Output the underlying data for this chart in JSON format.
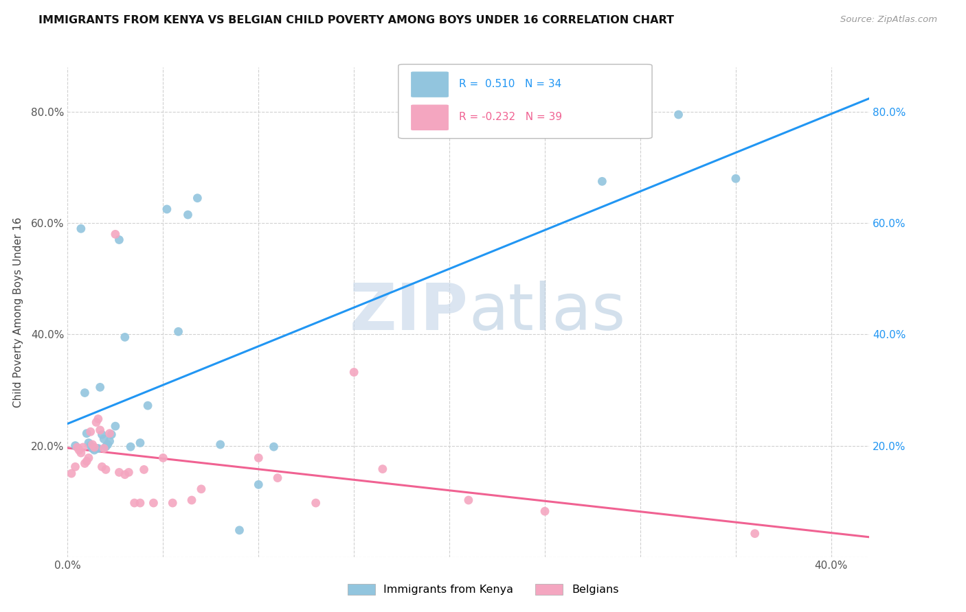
{
  "title": "IMMIGRANTS FROM KENYA VS BELGIAN CHILD POVERTY AMONG BOYS UNDER 16 CORRELATION CHART",
  "source": "Source: ZipAtlas.com",
  "ylabel": "Child Poverty Among Boys Under 16",
  "y_ticks": [
    0.0,
    0.2,
    0.4,
    0.6,
    0.8
  ],
  "y_tick_labels": [
    "",
    "20.0%",
    "40.0%",
    "60.0%",
    "80.0%"
  ],
  "xlim": [
    0.0,
    0.42
  ],
  "ylim": [
    0.0,
    0.88
  ],
  "color_kenya": "#92c5de",
  "color_belgian": "#f4a6c0",
  "trendline_color_kenya": "#2196F3",
  "trendline_color_belgian": "#f06292",
  "kenya_x": [
    0.004,
    0.007,
    0.009,
    0.01,
    0.011,
    0.012,
    0.013,
    0.014,
    0.015,
    0.016,
    0.017,
    0.018,
    0.019,
    0.02,
    0.021,
    0.022,
    0.023,
    0.025,
    0.027,
    0.03,
    0.033,
    0.038,
    0.042,
    0.052,
    0.058,
    0.063,
    0.068,
    0.08,
    0.09,
    0.1,
    0.108,
    0.28,
    0.32,
    0.35
  ],
  "kenya_y": [
    0.2,
    0.59,
    0.295,
    0.222,
    0.205,
    0.2,
    0.195,
    0.192,
    0.195,
    0.195,
    0.305,
    0.22,
    0.212,
    0.198,
    0.202,
    0.208,
    0.22,
    0.235,
    0.57,
    0.395,
    0.198,
    0.205,
    0.272,
    0.625,
    0.405,
    0.615,
    0.645,
    0.202,
    0.048,
    0.13,
    0.198,
    0.675,
    0.795,
    0.68
  ],
  "belgian_x": [
    0.002,
    0.004,
    0.005,
    0.006,
    0.007,
    0.008,
    0.009,
    0.01,
    0.011,
    0.012,
    0.013,
    0.014,
    0.015,
    0.016,
    0.017,
    0.018,
    0.019,
    0.02,
    0.022,
    0.025,
    0.027,
    0.03,
    0.032,
    0.035,
    0.038,
    0.04,
    0.045,
    0.05,
    0.055,
    0.065,
    0.07,
    0.1,
    0.11,
    0.13,
    0.15,
    0.165,
    0.21,
    0.25,
    0.36
  ],
  "belgian_y": [
    0.15,
    0.162,
    0.197,
    0.192,
    0.187,
    0.197,
    0.168,
    0.172,
    0.178,
    0.225,
    0.202,
    0.197,
    0.242,
    0.248,
    0.228,
    0.162,
    0.195,
    0.157,
    0.222,
    0.58,
    0.152,
    0.148,
    0.152,
    0.097,
    0.097,
    0.157,
    0.097,
    0.178,
    0.097,
    0.102,
    0.122,
    0.178,
    0.142,
    0.097,
    0.332,
    0.158,
    0.102,
    0.082,
    0.042
  ]
}
